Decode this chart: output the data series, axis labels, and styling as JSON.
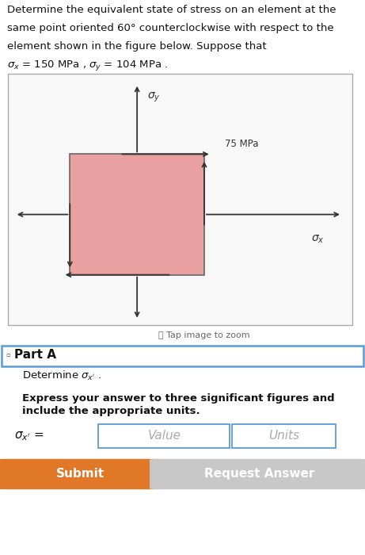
{
  "bg_color": "#ffffff",
  "diagram_box_color": "#e8a0a0",
  "diagram_bg": "#f8f8f8",
  "diagram_border": "#aaaaaa",
  "part_a_border": "#5b9bd5",
  "submit_color": "#e07828",
  "request_color": "#c8c8c8",
  "arrow_color": "#333333",
  "text_color": "#111111",
  "placeholder_color": "#aaaaaa",
  "tap_icon_color": "#555555",
  "header_lines": [
    "Determine the equivalent state of stress on an element at the",
    "same point oriented 60° counterclockwise with respect to the",
    "element shown in the figure below. Suppose that"
  ],
  "header_math_line": "$\\sigma_x$ = 150 MPa , $\\sigma_y$ = 104 MPa .",
  "shear_label": "75 MPa",
  "sigma_x_label": "$\\sigma_x$",
  "sigma_y_label": "$\\sigma_y$",
  "tap_text": "Tap image to zoom",
  "part_a_text": "Part A",
  "determine_text": "Determine $\\sigma_{x'}$ .",
  "express_line1": "Express your answer to three significant figures and",
  "express_line2": "include the appropriate units.",
  "eq_label": "$\\sigma_{x'}$ =",
  "value_text": "Value",
  "units_text": "Units",
  "submit_text": "Submit",
  "request_text": "Request Answer",
  "fontsize_body": 9.5,
  "fontsize_math": 9.5,
  "fontsize_diag": 10,
  "fontsize_partA": 11,
  "fontsize_determine": 9.5,
  "fontsize_express": 9.5,
  "fontsize_eq": 11,
  "fontsize_btn": 11
}
